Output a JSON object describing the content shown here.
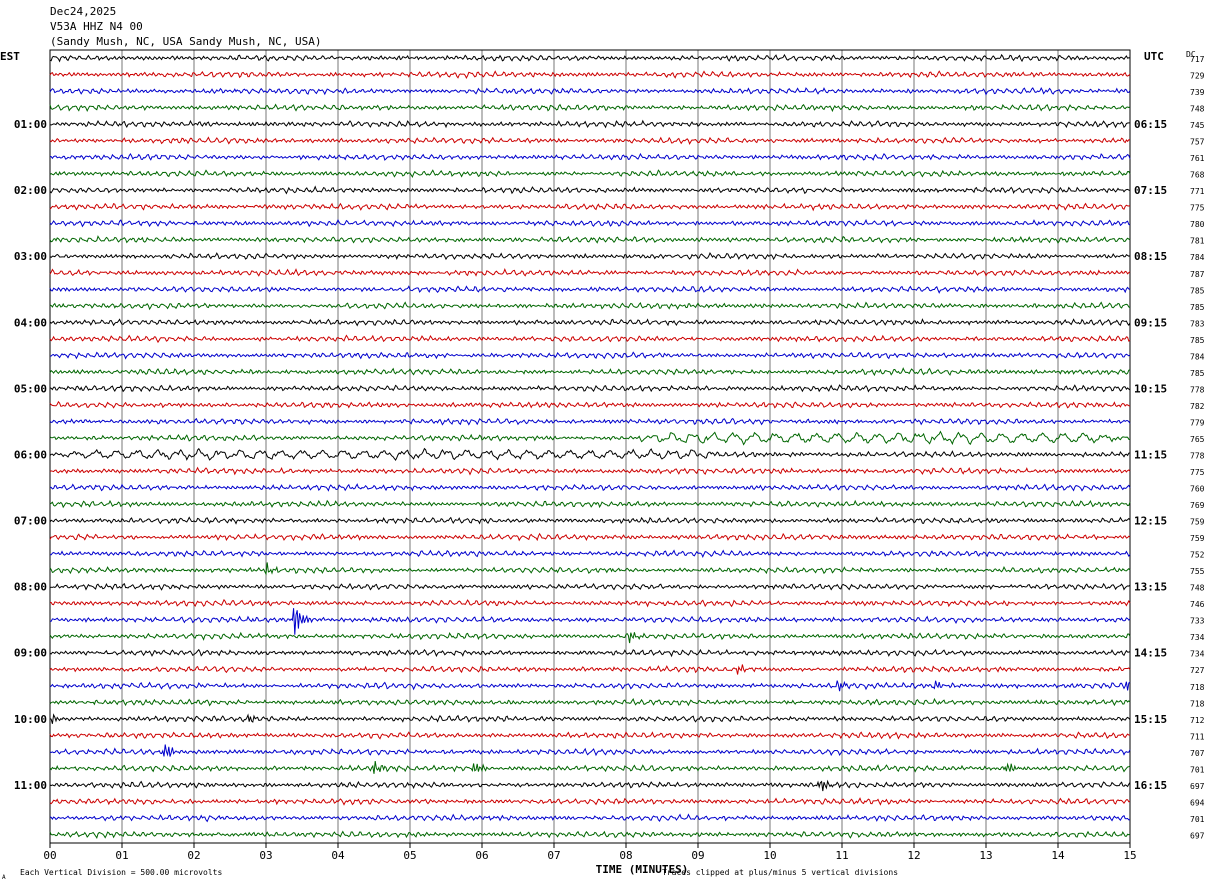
{
  "header": {
    "date": "Dec24,2025",
    "station": "V53A HHZ N4 00",
    "location": "(Sandy Mush, NC, USA Sandy Mush, NC, USA)",
    "left_zone": "EST",
    "right_zone": "UTC",
    "dc_label": "DC"
  },
  "footer": {
    "xlabel": "TIME (MINUTES)",
    "scale_note": "Each Vertical Division =  500.00 microvolts",
    "clip_note": "Traces clipped at plus/minus 5 vertical divisions",
    "corner_mark": "A"
  },
  "chart_data": {
    "type": "line",
    "title": "V53A HHZ N4 00",
    "xlabel": "TIME (MINUTES)",
    "ylabel": "",
    "xlim": [
      0,
      15
    ],
    "x_ticks": [
      "00",
      "01",
      "02",
      "03",
      "04",
      "05",
      "06",
      "07",
      "08",
      "09",
      "10",
      "11",
      "12",
      "13",
      "14",
      "15"
    ],
    "grid": true,
    "trace_colors": [
      "#000000",
      "#cc0000",
      "#0000cc",
      "#006600"
    ],
    "left_hour_labels": [
      "01:00",
      "02:00",
      "03:00",
      "04:00",
      "05:00",
      "06:00",
      "07:00",
      "08:00",
      "09:00",
      "10:00",
      "11:00"
    ],
    "right_hour_labels": [
      "06:15",
      "07:15",
      "08:15",
      "09:15",
      "10:15",
      "11:15",
      "12:15",
      "13:15",
      "14:15",
      "15:15",
      "16:15"
    ],
    "dc_offsets": [
      717,
      729,
      739,
      748,
      745,
      757,
      761,
      768,
      771,
      775,
      780,
      781,
      784,
      787,
      785,
      785,
      783,
      785,
      784,
      785,
      778,
      782,
      779,
      765,
      778,
      775,
      760,
      769,
      759,
      759,
      752,
      755,
      748,
      746,
      733,
      734,
      734,
      727,
      718,
      718,
      712,
      711,
      707,
      701,
      697,
      694,
      701,
      697
    ],
    "events": [
      {
        "trace": 23,
        "type": "long-period swell",
        "start_min": 8.0,
        "end_min": 15.0,
        "amplitude_div": 1.2
      },
      {
        "trace": 24,
        "type": "long-period swell",
        "start_min": 0.0,
        "end_min": 9.5,
        "amplitude_div": 1.0
      },
      {
        "trace": 31,
        "minute": 3.0,
        "amplitude_div": 1.1
      },
      {
        "trace": 34,
        "minute": 3.4,
        "amplitude_div": 3.2
      },
      {
        "trace": 35,
        "minute": 8.05,
        "amplitude_div": 1.0
      },
      {
        "trace": 37,
        "minute": 9.55,
        "amplitude_div": 0.8
      },
      {
        "trace": 38,
        "minute": 10.95,
        "amplitude_div": 1.1
      },
      {
        "trace": 38,
        "minute": 12.3,
        "amplitude_div": 0.8
      },
      {
        "trace": 38,
        "minute": 14.95,
        "amplitude_div": 1.0
      },
      {
        "trace": 40,
        "minute": 0.05,
        "amplitude_div": 0.8
      },
      {
        "trace": 40,
        "minute": 2.75,
        "amplitude_div": 0.9
      },
      {
        "trace": 42,
        "minute": 1.6,
        "amplitude_div": 1.6
      },
      {
        "trace": 43,
        "minute": 4.5,
        "amplitude_div": 1.4
      },
      {
        "trace": 43,
        "minute": 5.9,
        "amplitude_div": 1.2
      },
      {
        "trace": 43,
        "minute": 13.3,
        "amplitude_div": 1.2
      },
      {
        "trace": 44,
        "minute": 10.7,
        "amplitude_div": 1.3
      }
    ]
  }
}
